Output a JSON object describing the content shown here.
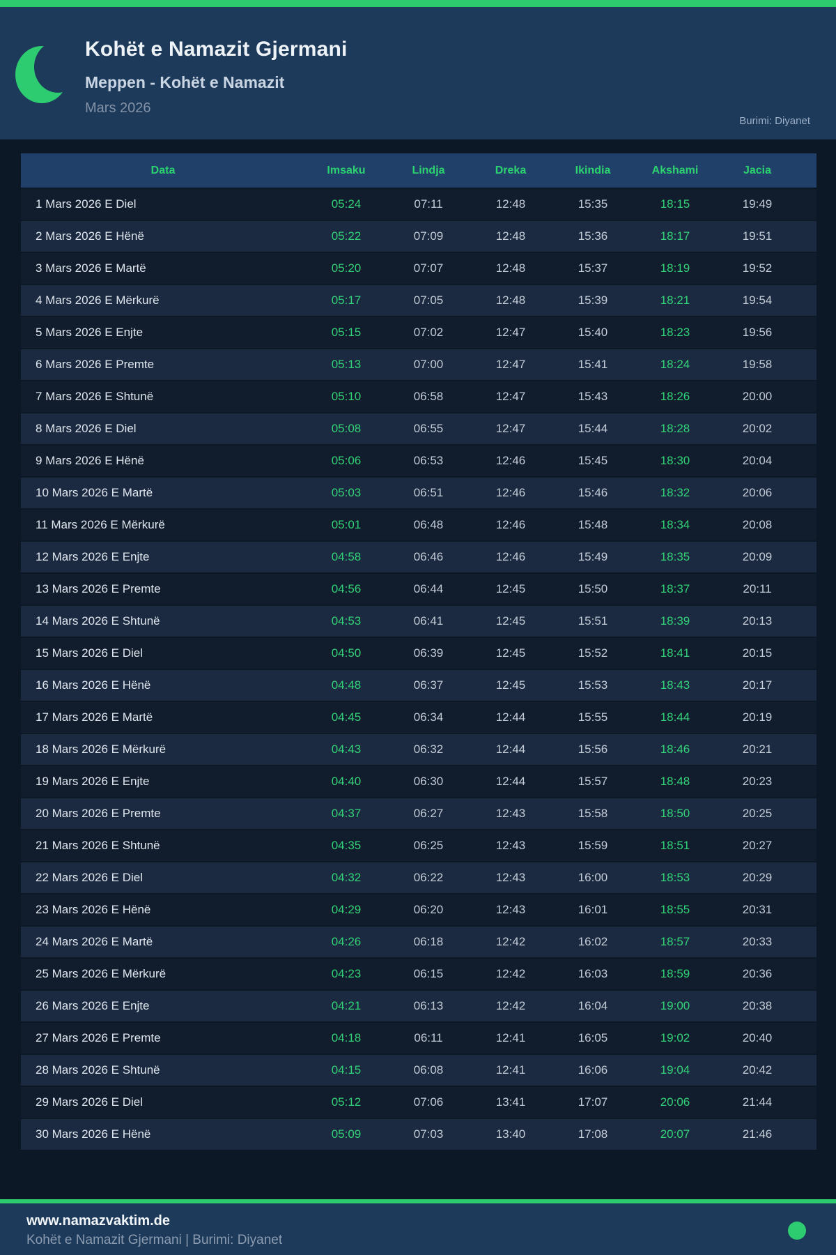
{
  "colors": {
    "accent_green": "#2ecc71",
    "time_green": "#32d377",
    "header_bg": "#1e3a5b",
    "table_header_bg": "#214069",
    "row_dark": "#111c2d",
    "row_light": "#1b2a40",
    "page_bg": "#0d1827"
  },
  "header": {
    "icon": "crescent-moon-icon",
    "title": "Kohët e Namazit Gjermani",
    "subtitle": "Meppen - Kohët e Namazit",
    "period": "Mars 2026",
    "source": "Burimi: Diyanet"
  },
  "table": {
    "columns": [
      "Data",
      "Imsaku",
      "Lindja",
      "Dreka",
      "Ikindia",
      "Akshami",
      "Jacia"
    ],
    "green_columns": [
      "Imsaku",
      "Akshami"
    ],
    "rows": [
      {
        "date": "1 Mars 2026 E Diel",
        "times": [
          "05:24",
          "07:11",
          "12:48",
          "15:35",
          "18:15",
          "19:49"
        ]
      },
      {
        "date": "2 Mars 2026 E Hënë",
        "times": [
          "05:22",
          "07:09",
          "12:48",
          "15:36",
          "18:17",
          "19:51"
        ]
      },
      {
        "date": "3 Mars 2026 E Martë",
        "times": [
          "05:20",
          "07:07",
          "12:48",
          "15:37",
          "18:19",
          "19:52"
        ]
      },
      {
        "date": "4 Mars 2026 E Mërkurë",
        "times": [
          "05:17",
          "07:05",
          "12:48",
          "15:39",
          "18:21",
          "19:54"
        ]
      },
      {
        "date": "5 Mars 2026 E Enjte",
        "times": [
          "05:15",
          "07:02",
          "12:47",
          "15:40",
          "18:23",
          "19:56"
        ]
      },
      {
        "date": "6 Mars 2026 E Premte",
        "times": [
          "05:13",
          "07:00",
          "12:47",
          "15:41",
          "18:24",
          "19:58"
        ]
      },
      {
        "date": "7 Mars 2026 E Shtunë",
        "times": [
          "05:10",
          "06:58",
          "12:47",
          "15:43",
          "18:26",
          "20:00"
        ]
      },
      {
        "date": "8 Mars 2026 E Diel",
        "times": [
          "05:08",
          "06:55",
          "12:47",
          "15:44",
          "18:28",
          "20:02"
        ]
      },
      {
        "date": "9 Mars 2026 E Hënë",
        "times": [
          "05:06",
          "06:53",
          "12:46",
          "15:45",
          "18:30",
          "20:04"
        ]
      },
      {
        "date": "10 Mars 2026 E Martë",
        "times": [
          "05:03",
          "06:51",
          "12:46",
          "15:46",
          "18:32",
          "20:06"
        ]
      },
      {
        "date": "11 Mars 2026 E Mërkurë",
        "times": [
          "05:01",
          "06:48",
          "12:46",
          "15:48",
          "18:34",
          "20:08"
        ]
      },
      {
        "date": "12 Mars 2026 E Enjte",
        "times": [
          "04:58",
          "06:46",
          "12:46",
          "15:49",
          "18:35",
          "20:09"
        ]
      },
      {
        "date": "13 Mars 2026 E Premte",
        "times": [
          "04:56",
          "06:44",
          "12:45",
          "15:50",
          "18:37",
          "20:11"
        ]
      },
      {
        "date": "14 Mars 2026 E Shtunë",
        "times": [
          "04:53",
          "06:41",
          "12:45",
          "15:51",
          "18:39",
          "20:13"
        ]
      },
      {
        "date": "15 Mars 2026 E Diel",
        "times": [
          "04:50",
          "06:39",
          "12:45",
          "15:52",
          "18:41",
          "20:15"
        ]
      },
      {
        "date": "16 Mars 2026 E Hënë",
        "times": [
          "04:48",
          "06:37",
          "12:45",
          "15:53",
          "18:43",
          "20:17"
        ]
      },
      {
        "date": "17 Mars 2026 E Martë",
        "times": [
          "04:45",
          "06:34",
          "12:44",
          "15:55",
          "18:44",
          "20:19"
        ]
      },
      {
        "date": "18 Mars 2026 E Mërkurë",
        "times": [
          "04:43",
          "06:32",
          "12:44",
          "15:56",
          "18:46",
          "20:21"
        ]
      },
      {
        "date": "19 Mars 2026 E Enjte",
        "times": [
          "04:40",
          "06:30",
          "12:44",
          "15:57",
          "18:48",
          "20:23"
        ]
      },
      {
        "date": "20 Mars 2026 E Premte",
        "times": [
          "04:37",
          "06:27",
          "12:43",
          "15:58",
          "18:50",
          "20:25"
        ]
      },
      {
        "date": "21 Mars 2026 E Shtunë",
        "times": [
          "04:35",
          "06:25",
          "12:43",
          "15:59",
          "18:51",
          "20:27"
        ]
      },
      {
        "date": "22 Mars 2026 E Diel",
        "times": [
          "04:32",
          "06:22",
          "12:43",
          "16:00",
          "18:53",
          "20:29"
        ]
      },
      {
        "date": "23 Mars 2026 E Hënë",
        "times": [
          "04:29",
          "06:20",
          "12:43",
          "16:01",
          "18:55",
          "20:31"
        ]
      },
      {
        "date": "24 Mars 2026 E Martë",
        "times": [
          "04:26",
          "06:18",
          "12:42",
          "16:02",
          "18:57",
          "20:33"
        ]
      },
      {
        "date": "25 Mars 2026 E Mërkurë",
        "times": [
          "04:23",
          "06:15",
          "12:42",
          "16:03",
          "18:59",
          "20:36"
        ]
      },
      {
        "date": "26 Mars 2026 E Enjte",
        "times": [
          "04:21",
          "06:13",
          "12:42",
          "16:04",
          "19:00",
          "20:38"
        ]
      },
      {
        "date": "27 Mars 2026 E Premte",
        "times": [
          "04:18",
          "06:11",
          "12:41",
          "16:05",
          "19:02",
          "20:40"
        ]
      },
      {
        "date": "28 Mars 2026 E Shtunë",
        "times": [
          "04:15",
          "06:08",
          "12:41",
          "16:06",
          "19:04",
          "20:42"
        ]
      },
      {
        "date": "29 Mars 2026 E Diel",
        "times": [
          "05:12",
          "07:06",
          "13:41",
          "17:07",
          "20:06",
          "21:44"
        ]
      },
      {
        "date": "30 Mars 2026 E Hënë",
        "times": [
          "05:09",
          "07:03",
          "13:40",
          "17:08",
          "20:07",
          "21:46"
        ]
      }
    ]
  },
  "footer": {
    "site": "www.namazvaktim.de",
    "tagline": "Kohët e Namazit Gjermani | Burimi: Diyanet",
    "icon": "status-dot-icon"
  }
}
